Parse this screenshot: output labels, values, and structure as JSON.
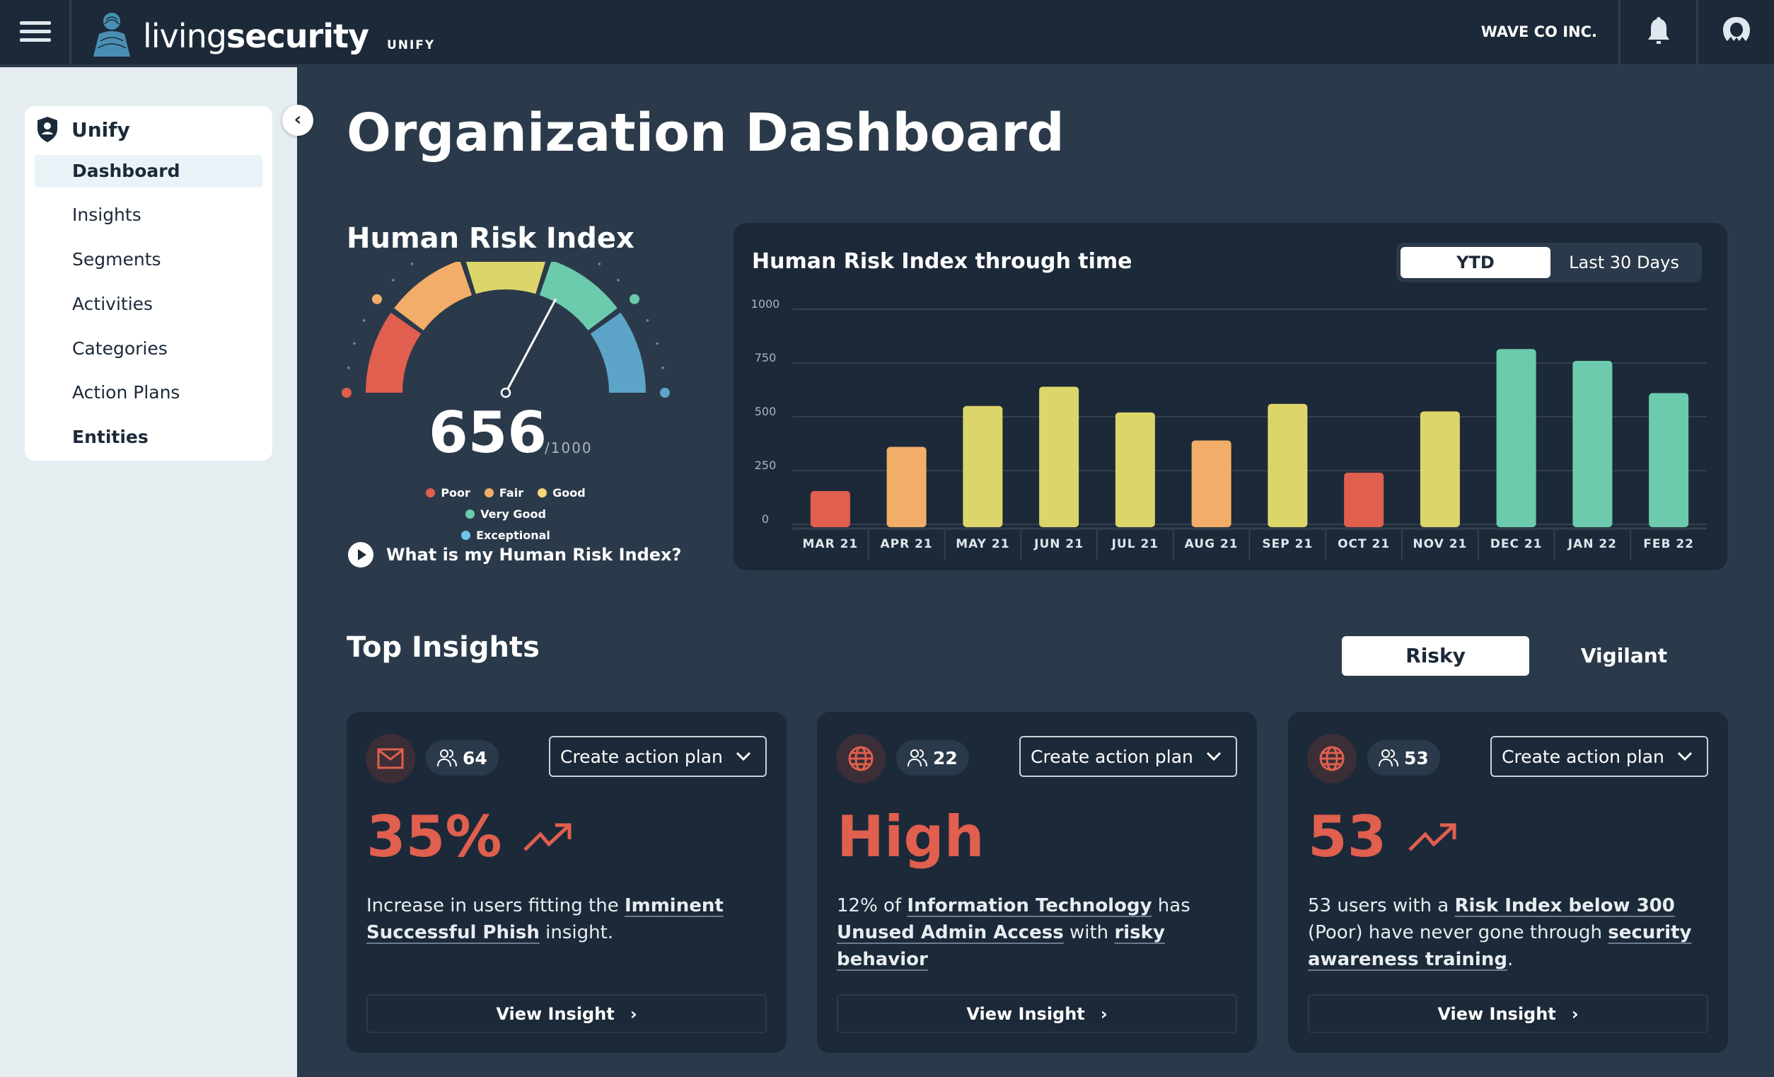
{
  "header": {
    "logo_text_light": "living",
    "logo_text_bold": "security",
    "product": "UNIFY",
    "org": "WAVE CO INC."
  },
  "sidebar": {
    "title": "Unify",
    "items": [
      {
        "label": "Dashboard",
        "active": true
      },
      {
        "label": "Insights"
      },
      {
        "label": "Segments"
      },
      {
        "label": "Activities"
      },
      {
        "label": "Categories"
      },
      {
        "label": "Action Plans"
      },
      {
        "label": "Entities"
      }
    ]
  },
  "page": {
    "title": "Organization Dashboard"
  },
  "hri": {
    "title": "Human Risk Index",
    "score": 656,
    "score_text": "656",
    "denominator": "/1000",
    "max": 1000,
    "legend": [
      {
        "label": "Poor",
        "color": "#e05f4e"
      },
      {
        "label": "Fair",
        "color": "#f2ae68"
      },
      {
        "label": "Good",
        "color": "#f5d77a"
      },
      {
        "label": "Very Good",
        "color": "#6ccbac"
      },
      {
        "label": "Exceptional",
        "color": "#6fc6ec"
      }
    ],
    "segment_colors": [
      "#e05f4e",
      "#f2ae68",
      "#dcd56a",
      "#6ccbac",
      "#5da4c8"
    ],
    "help_link": "What is my Human Risk Index?"
  },
  "trend": {
    "title": "Human Risk Index through time",
    "tabs": [
      "YTD",
      "Last 30 Days"
    ],
    "active_tab": "YTD"
  },
  "chart_data": {
    "type": "bar",
    "title": "Human Risk Index through time",
    "ylim": [
      0,
      1000
    ],
    "yticks": [
      "1000",
      "750",
      "500",
      "250",
      "0"
    ],
    "ytick_values": [
      1000,
      750,
      500,
      250,
      0
    ],
    "grid": true,
    "categories": [
      "MAR 21",
      "APR 21",
      "MAY 21",
      "JUN 21",
      "JUL 21",
      "AUG 21",
      "SEP 21",
      "OCT 21",
      "NOV 21",
      "DEC 21",
      "JAN 22",
      "FEB 22"
    ],
    "values": [
      155,
      360,
      550,
      640,
      520,
      390,
      560,
      240,
      525,
      815,
      760,
      610
    ],
    "colors": [
      "#e05f4e",
      "#f2ae68",
      "#dcd56a",
      "#dcd56a",
      "#dcd56a",
      "#f2ae68",
      "#dcd56a",
      "#e05f4e",
      "#dcd56a",
      "#6ccbac",
      "#6ccbac",
      "#6ccbac"
    ]
  },
  "insights": {
    "title": "Top Insights",
    "tabs": [
      "Risky",
      "Vigilant"
    ],
    "active_tab": "Risky",
    "cards": [
      {
        "icon": "mail-icon",
        "users": "64",
        "action": "Create action plan",
        "value": "35%",
        "trend": "up",
        "desc": [
          {
            "t": "Increase in users fitting the "
          },
          {
            "t": "Imminent Successful Phish",
            "link": true
          },
          {
            "t": " insight."
          }
        ],
        "view": "View Insight"
      },
      {
        "icon": "globe-icon",
        "users": "22",
        "action": "Create action plan",
        "value": "High",
        "trend": "",
        "desc": [
          {
            "t": "12% of "
          },
          {
            "t": "Information Technology",
            "link": true
          },
          {
            "t": " has "
          },
          {
            "t": "Unused Admin Access",
            "link": true
          },
          {
            "t": " with "
          },
          {
            "t": "risky behavior",
            "link": true
          }
        ],
        "view": "View Insight"
      },
      {
        "icon": "globe-icon",
        "users": "53",
        "action": "Create action plan",
        "value": "53",
        "trend": "up",
        "desc": [
          {
            "t": "53 users with a "
          },
          {
            "t": "Risk Index below 300",
            "link": true
          },
          {
            "t": " (Poor) have never gone through "
          },
          {
            "t": "security awareness training",
            "link": true
          },
          {
            "t": "."
          }
        ],
        "view": "View Insight"
      }
    ]
  }
}
